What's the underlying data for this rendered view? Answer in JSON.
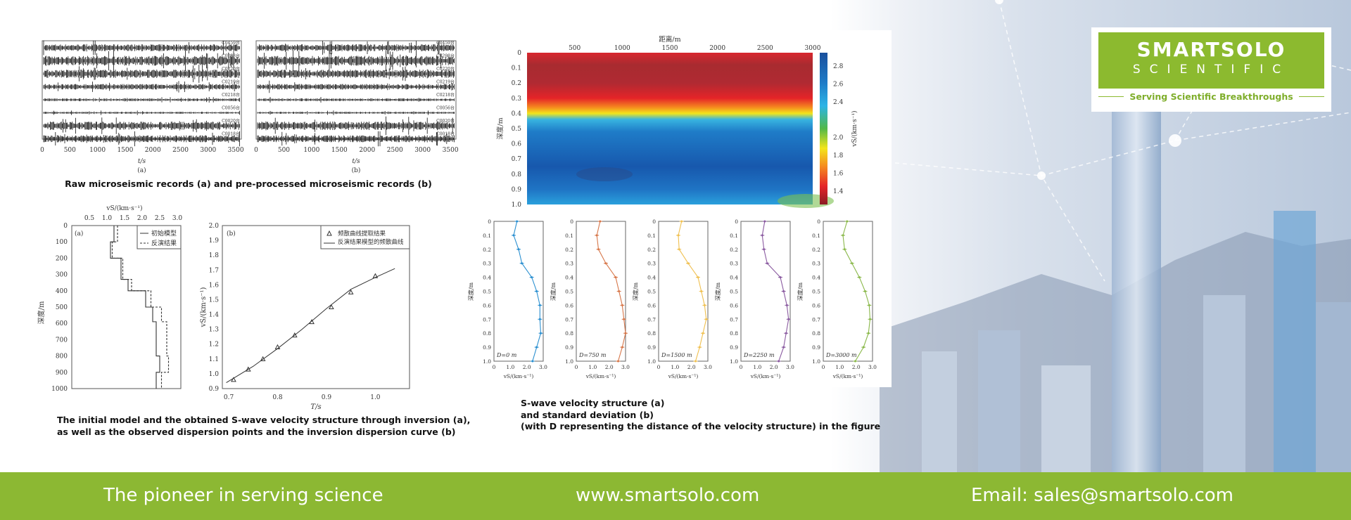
{
  "colors": {
    "brand_green": "#8cb833",
    "heat_low": "#c2262b",
    "heat_high": "#1a4f9c"
  },
  "logo": {
    "line1": "SMARTSOLO",
    "line2": "SCIENTIFIC",
    "tagline": "Serving Scientific Breakthroughs"
  },
  "footer": {
    "slogan": "The pioneer in serving science",
    "website": "www.smartsolo.com",
    "email": "Email: sales@smartsolo.com"
  },
  "captions": {
    "seismic": "Raw microseismic records (a) and pre-processed microseismic records (b)",
    "inversion_line1": "The initial model and the obtained S-wave velocity structure through inversion (a),",
    "inversion_line2": "as well as the observed dispersion points and the inversion dispersion curve (b)",
    "swave_line1": "S-wave velocity structure (a)",
    "swave_line2": "and standard deviation (b)",
    "swave_line3": "(with D representing the distance of the velocity structure) in the figure"
  },
  "chart_data": [
    {
      "id": "seismic",
      "type": "line",
      "panels": [
        "(a)",
        "(b)"
      ],
      "xlabel": "t/s",
      "xticks": [
        "0",
        "500",
        "1000",
        "1500",
        "2000",
        "2500",
        "3000",
        "3500"
      ],
      "xlim": [
        0,
        3600
      ],
      "traces": [
        "C0459台",
        "C0298台",
        "C0220台",
        "C0219台",
        "C0218台",
        "C0056台",
        "C0020台",
        "C0018台"
      ]
    },
    {
      "id": "model",
      "type": "line",
      "panel": "(a)",
      "xlabel": "vS/(km·s⁻¹)",
      "ylabel": "深度/m",
      "xlim": [
        0,
        3.1
      ],
      "ylim": [
        0,
        1000
      ],
      "xticks": [
        "0.5",
        "1.0",
        "1.5",
        "2.0",
        "2.5",
        "3.0"
      ],
      "yticks": [
        "0",
        "100",
        "200",
        "300",
        "400",
        "500",
        "600",
        "700",
        "800",
        "900",
        "1000"
      ],
      "legend": [
        "初始模型",
        "反演结果"
      ],
      "series": [
        {
          "name": "初始模型",
          "depth_bounds": [
            0,
            100,
            200,
            330,
            400,
            500,
            590,
            800,
            900,
            1000
          ],
          "vs": [
            1.2,
            1.1,
            1.4,
            1.6,
            2.1,
            2.3,
            2.4,
            2.5,
            2.4
          ]
        },
        {
          "name": "反演结果",
          "depth_bounds": [
            0,
            100,
            200,
            330,
            400,
            500,
            590,
            800,
            900,
            1000
          ],
          "vs": [
            1.3,
            1.15,
            1.45,
            1.7,
            2.25,
            2.55,
            2.7,
            2.75,
            2.55
          ]
        }
      ]
    },
    {
      "id": "dispersion",
      "type": "scatter",
      "panel": "(b)",
      "xlabel": "T/s",
      "ylabel": "vS/(km·s⁻¹)",
      "xlim": [
        0.687,
        1.07
      ],
      "ylim": [
        0.9,
        2.0
      ],
      "xticks": [
        "0.7",
        "0.8",
        "0.9",
        "1.0"
      ],
      "yticks": [
        "0.9",
        "1.0",
        "1.1",
        "1.2",
        "1.3",
        "1.4",
        "1.5",
        "1.6",
        "1.7",
        "1.8",
        "1.9",
        "2.0"
      ],
      "legend": [
        "频散曲线提取结果",
        "反演结果模型的频散曲线"
      ],
      "points": {
        "T": [
          0.71,
          0.74,
          0.77,
          0.8,
          0.835,
          0.87,
          0.91,
          0.95,
          1.0
        ],
        "v": [
          0.96,
          1.03,
          1.1,
          1.18,
          1.26,
          1.35,
          1.45,
          1.55,
          1.66
        ]
      },
      "curve": {
        "T": [
          0.695,
          0.75,
          0.8,
          0.85,
          0.9,
          0.95,
          1.0,
          1.04
        ],
        "v": [
          0.94,
          1.05,
          1.17,
          1.3,
          1.44,
          1.57,
          1.65,
          1.71
        ]
      }
    },
    {
      "id": "heatmap",
      "type": "heatmap",
      "xlabel": "距离/m",
      "ylabel": "深度/m",
      "colorbar_label": "vS/(km·s⁻¹)",
      "xlim": [
        0,
        3000
      ],
      "ylim": [
        0,
        1.0
      ],
      "xticks": [
        "500",
        "1000",
        "1500",
        "2000",
        "2500",
        "3000"
      ],
      "yticks": [
        "0",
        "0.1",
        "0.2",
        "0.3",
        "0.4",
        "0.5",
        "0.6",
        "0.7",
        "0.8",
        "0.9",
        "1.0"
      ],
      "cbar_ticks": [
        "1.4",
        "1.6",
        "1.8",
        "2.0",
        "2.4",
        "2.6",
        "2.8"
      ],
      "vrange": [
        1.25,
        2.95
      ]
    },
    {
      "id": "profiles",
      "type": "line",
      "xlabel": "vS/(km·s⁻¹)",
      "ylabel": "深度/m",
      "xlim": [
        0,
        3.0
      ],
      "ylim": [
        0,
        1.0
      ],
      "xticks": [
        "0",
        "1.0",
        "2.0",
        "3.0"
      ],
      "yticks": [
        "0",
        "0.1",
        "0.2",
        "0.3",
        "0.4",
        "0.5",
        "0.6",
        "0.7",
        "0.8",
        "0.9",
        "1.0"
      ],
      "depth": [
        0,
        0.1,
        0.2,
        0.3,
        0.4,
        0.5,
        0.6,
        0.7,
        0.8,
        0.9,
        1.0
      ],
      "series": [
        {
          "name": "D=0 m",
          "color": "#2a8fd0",
          "vs": [
            1.4,
            1.2,
            1.5,
            1.7,
            2.3,
            2.6,
            2.8,
            2.8,
            2.85,
            2.6,
            2.35
          ]
        },
        {
          "name": "D=750 m",
          "color": "#d7774a",
          "vs": [
            1.45,
            1.25,
            1.35,
            1.8,
            2.4,
            2.6,
            2.8,
            2.9,
            3.0,
            2.8,
            2.55
          ]
        },
        {
          "name": "D=1500 m",
          "color": "#f0c050",
          "vs": [
            1.4,
            1.2,
            1.25,
            1.8,
            2.4,
            2.6,
            2.8,
            2.9,
            2.7,
            2.5,
            2.25
          ]
        },
        {
          "name": "D=2250 m",
          "color": "#8a5aa0",
          "vs": [
            1.45,
            1.3,
            1.4,
            1.6,
            2.4,
            2.6,
            2.8,
            2.9,
            2.75,
            2.6,
            2.3
          ]
        },
        {
          "name": "D=3000 m",
          "color": "#8ab84a",
          "vs": [
            1.45,
            1.2,
            1.3,
            1.75,
            2.2,
            2.55,
            2.8,
            2.85,
            2.75,
            2.45,
            1.95
          ]
        }
      ]
    }
  ]
}
